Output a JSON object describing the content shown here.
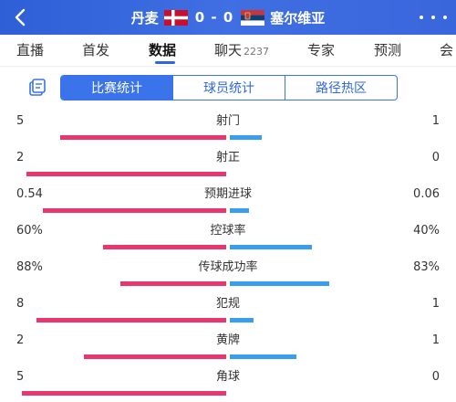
{
  "header": {
    "home_team": "丹麦",
    "away_team": "塞尔维亚",
    "score": "0 - 0",
    "colors": {
      "bg": "#3a66dc",
      "home_flag": "#c8102e",
      "away_flag_top": "#c6363c",
      "away_flag_mid": "#0c4076"
    }
  },
  "tabs": [
    {
      "label": "直播",
      "active": false
    },
    {
      "label": "首发",
      "active": false
    },
    {
      "label": "数据",
      "active": true
    },
    {
      "label": "聊天",
      "count": "2237",
      "active": false
    },
    {
      "label": "专家",
      "active": false
    },
    {
      "label": "预测",
      "active": false
    },
    {
      "label": "会",
      "active": false
    }
  ],
  "segments": [
    {
      "label": "比赛统计",
      "active": true
    },
    {
      "label": "球员统计",
      "active": false
    },
    {
      "label": "路径热区",
      "active": false
    }
  ],
  "icons": {
    "back": "chevron-left-icon",
    "more": "more-dots-icon",
    "clipboard": "clipboard-icon"
  },
  "stats": [
    {
      "label": "射门",
      "left": "5",
      "right": "1",
      "left_frac": 0.77,
      "right_frac": 0.15
    },
    {
      "label": "射正",
      "left": "2",
      "right": "0",
      "left_frac": 0.93,
      "right_frac": 0.0
    },
    {
      "label": "预期进球",
      "left": "0.54",
      "right": "0.06",
      "left_frac": 0.85,
      "right_frac": 0.09
    },
    {
      "label": "控球率",
      "left": "60%",
      "right": "40%",
      "left_frac": 0.57,
      "right_frac": 0.38
    },
    {
      "label": "传球成功率",
      "left": "88%",
      "right": "83%",
      "left_frac": 0.49,
      "right_frac": 0.46
    },
    {
      "label": "犯规",
      "left": "8",
      "right": "1",
      "left_frac": 0.88,
      "right_frac": 0.11
    },
    {
      "label": "黄牌",
      "left": "2",
      "right": "1",
      "left_frac": 0.66,
      "right_frac": 0.31
    },
    {
      "label": "角球",
      "left": "5",
      "right": "0",
      "left_frac": 0.95,
      "right_frac": 0.0
    }
  ]
}
